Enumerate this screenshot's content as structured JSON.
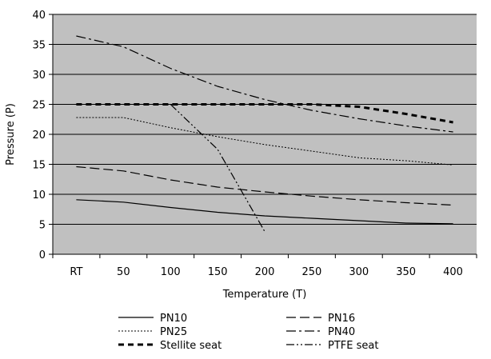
{
  "chart_data": {
    "type": "line",
    "title": "",
    "xlabel": "Temperature (T)",
    "ylabel": "Pressure (P)",
    "categories": [
      "RT",
      "50",
      "100",
      "150",
      "200",
      "250",
      "300",
      "350",
      "400"
    ],
    "ylim": [
      0,
      40
    ],
    "yticks": [
      0,
      5,
      10,
      15,
      20,
      25,
      30,
      35,
      40
    ],
    "grid": "horizontal",
    "plot_background": "#c0c0c0",
    "legend_position": "bottom",
    "series": [
      {
        "name": "PN10",
        "style": "solid",
        "width": 1.2,
        "values": [
          9.1,
          8.7,
          7.8,
          7.0,
          6.4,
          6.0,
          5.6,
          5.2,
          5.1
        ]
      },
      {
        "name": "PN16",
        "style": "dash",
        "width": 1.2,
        "values": [
          14.6,
          13.9,
          12.4,
          11.2,
          10.4,
          9.7,
          9.1,
          8.6,
          8.2
        ]
      },
      {
        "name": "PN25",
        "style": "dot",
        "width": 1,
        "values": [
          22.8,
          22.8,
          21.1,
          19.6,
          18.3,
          17.2,
          16.1,
          15.6,
          14.9
        ]
      },
      {
        "name": "PN40",
        "style": "dashdot",
        "width": 1.2,
        "values": [
          36.4,
          34.6,
          31.0,
          28.0,
          25.8,
          24.0,
          22.6,
          21.4,
          20.4
        ]
      },
      {
        "name": "Stellite seat",
        "style": "thickdash",
        "width": 3,
        "values": [
          25,
          25,
          25,
          25,
          25,
          25,
          24.6,
          23.4,
          22.0
        ]
      },
      {
        "name": "PTFE seat",
        "style": "dashdotdot",
        "width": 1.2,
        "points": [
          [
            2,
            25
          ],
          [
            3,
            17.5
          ],
          [
            4,
            3.8
          ]
        ]
      }
    ]
  }
}
